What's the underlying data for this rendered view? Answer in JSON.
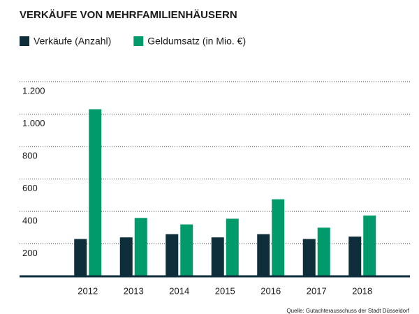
{
  "chart_data": {
    "type": "bar",
    "title": "VERKÄUFE VON MEHRFAMILIENHÄUSERN",
    "categories": [
      "2012",
      "2013",
      "2014",
      "2015",
      "2016",
      "2017",
      "2018"
    ],
    "series": [
      {
        "name": "Verkäufe (Anzahl)",
        "color": "#0d2e3a",
        "values": [
          230,
          240,
          260,
          240,
          260,
          230,
          245
        ]
      },
      {
        "name": "Geldumsatz (in Mio. €)",
        "color": "#009a6b",
        "values": [
          1030,
          360,
          320,
          355,
          475,
          300,
          375
        ]
      }
    ],
    "ylim": [
      0,
      1200
    ],
    "yticks": [
      200,
      400,
      600,
      800,
      {
        "value": 1000,
        "label": "1.000"
      },
      {
        "value": 1200,
        "label": "1.200"
      }
    ],
    "grid": true,
    "source": "Quelle: Gutachterausschuss der Stadt Düsseldorf"
  }
}
